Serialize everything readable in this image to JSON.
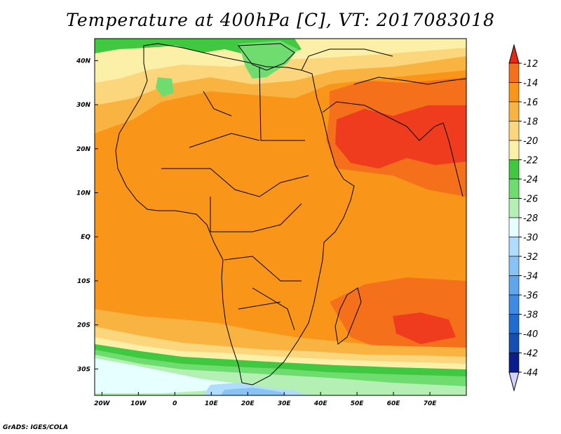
{
  "title": "Temperature at 400hPa [C], VT: 2017083018",
  "footer": "GrADS: IGES/COLA",
  "map": {
    "lon_range": [
      -22,
      80
    ],
    "lat_range": [
      -36,
      45
    ],
    "x_ticks": [
      "20W",
      "10W",
      "0",
      "10E",
      "20E",
      "30E",
      "40E",
      "50E",
      "60E",
      "70E"
    ],
    "y_ticks": [
      "40N",
      "30N",
      "20N",
      "10N",
      "EQ",
      "10S",
      "20S",
      "30S"
    ]
  },
  "colorbar": {
    "labels": [
      "-12",
      "-14",
      "-16",
      "-18",
      "-20",
      "-22",
      "-24",
      "-26",
      "-28",
      "-30",
      "-32",
      "-34",
      "-36",
      "-38",
      "-40",
      "-42",
      "-44"
    ],
    "colors": [
      "#f03c1e",
      "#f5701b",
      "#f99619",
      "#f9b341",
      "#fbd67c",
      "#fcf0a8",
      "#40c840",
      "#6fdc6f",
      "#b4f0b4",
      "#e6ffff",
      "#afdcff",
      "#87c3f5",
      "#5fa5f0",
      "#3c8ce6",
      "#1e6ed2",
      "#1450b4",
      "#0a1e8c"
    ],
    "top_arrow_color": "#e62814",
    "bottom_arrow_color": "#d2d2ff"
  },
  "field_colors": {
    "t12": "#f03c1e",
    "t14": "#f5701b",
    "t16": "#f99619",
    "t18": "#f9b341",
    "t20": "#fbd67c",
    "t22": "#fcf0a8",
    "t24": "#40c840",
    "t26": "#6fdc6f",
    "t28": "#b4f0b4",
    "t30": "#e6ffff",
    "t32": "#afdcff",
    "t34": "#87c3f5"
  }
}
